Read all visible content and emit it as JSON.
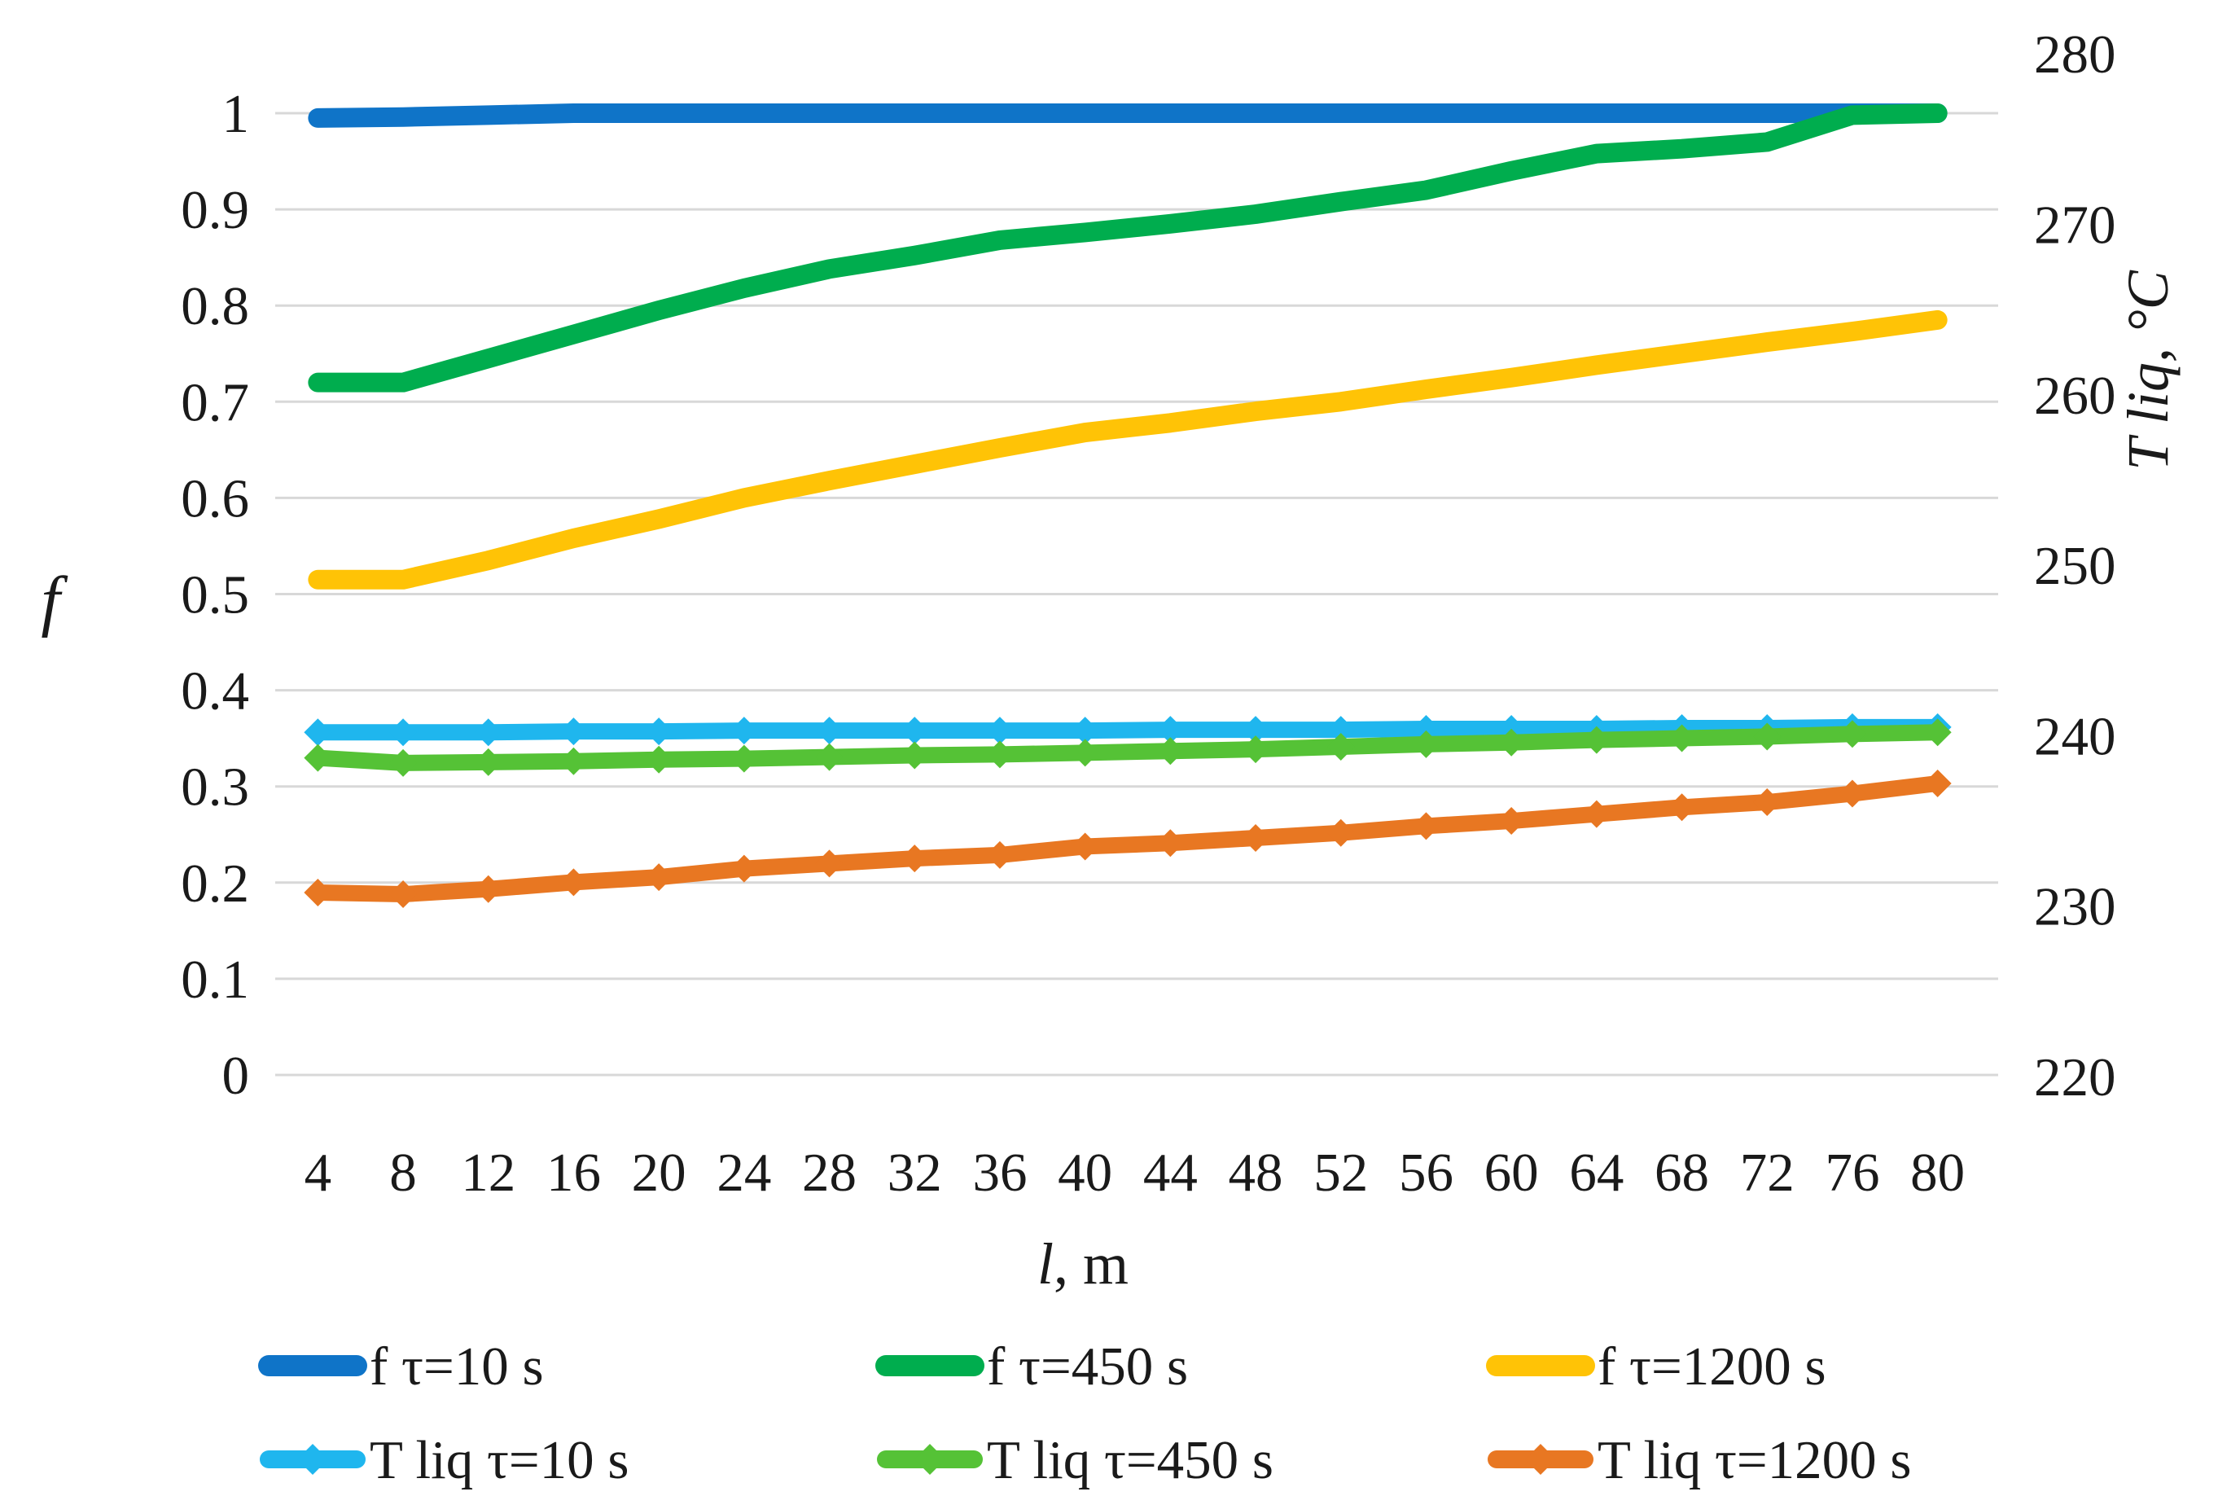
{
  "figure": {
    "background": "#FFFFFF",
    "grid_color": "#D8D8D8",
    "text_color": "#1A1A1A"
  },
  "chart_data": {
    "type": "line",
    "title": "",
    "xlabel": "l, m",
    "ylabel_left": "f",
    "ylabel_right": "T liq, °C",
    "x": [
      4,
      8,
      12,
      16,
      20,
      24,
      28,
      32,
      36,
      40,
      44,
      48,
      52,
      56,
      60,
      64,
      68,
      72,
      76,
      80
    ],
    "left_axis": {
      "min": 0,
      "max": 1,
      "tick_values": [
        1,
        0.9,
        0.8,
        0.7,
        0.6,
        0.5,
        0.4,
        0.3,
        0.2,
        0.1,
        0
      ],
      "tick_labels": [
        "1",
        "0.9",
        "0.8",
        "0.7",
        "0.6",
        "0.5",
        "0.4",
        "0.3",
        "0.2",
        "0.1",
        "0"
      ]
    },
    "right_axis": {
      "min": 220,
      "max": 283,
      "tick_values": [
        280,
        270,
        260,
        250,
        240,
        230,
        220
      ],
      "tick_labels": [
        "280",
        "270",
        "260",
        "250",
        "240",
        "230",
        "220"
      ]
    },
    "grid": "horizontal",
    "legend_position": "bottom",
    "series": [
      {
        "name": "f τ=10 s",
        "axis": "left",
        "color": "#0F74C8",
        "marker": false,
        "values": [
          0.995,
          0.996,
          0.998,
          1,
          1,
          1,
          1,
          1,
          1,
          1,
          1,
          1,
          1,
          1,
          1,
          1,
          1,
          1,
          1,
          1
        ]
      },
      {
        "name": "f τ=450 s",
        "axis": "left",
        "color": "#00AD4E",
        "marker": false,
        "values": [
          0.72,
          0.72,
          0.745,
          0.77,
          0.795,
          0.818,
          0.838,
          0.852,
          0.868,
          0.876,
          0.885,
          0.895,
          0.908,
          0.92,
          0.94,
          0.958,
          0.963,
          0.97,
          0.998,
          1
        ]
      },
      {
        "name": "f τ=1200 s",
        "axis": "left",
        "color": "#FFC306",
        "marker": false,
        "values": [
          0.515,
          0.515,
          0.535,
          0.558,
          0.578,
          0.6,
          0.618,
          0.635,
          0.652,
          0.668,
          0.678,
          0.69,
          0.7,
          0.713,
          0.725,
          0.738,
          0.75,
          0.762,
          0.773,
          0.785
        ]
      },
      {
        "name": "T liq τ=10 s",
        "axis": "right",
        "color": "#1FB6EE",
        "marker": true,
        "values": [
          240.2,
          240.2,
          240.2,
          240.25,
          240.25,
          240.3,
          240.3,
          240.3,
          240.3,
          240.3,
          240.35,
          240.35,
          240.35,
          240.4,
          240.4,
          240.4,
          240.45,
          240.45,
          240.5,
          240.5
        ]
      },
      {
        "name": "T liq τ=450 s",
        "axis": "right",
        "color": "#55C236",
        "marker": true,
        "values": [
          238.7,
          238.4,
          238.45,
          238.5,
          238.6,
          238.65,
          238.75,
          238.85,
          238.9,
          239,
          239.1,
          239.2,
          239.35,
          239.5,
          239.6,
          239.75,
          239.85,
          239.95,
          240.1,
          240.2
        ]
      },
      {
        "name": "T liq τ=1200 s",
        "axis": "right",
        "color": "#E87722",
        "marker": true,
        "values": [
          230.8,
          230.7,
          231,
          231.4,
          231.7,
          232.2,
          232.5,
          232.8,
          233,
          233.5,
          233.7,
          234,
          234.3,
          234.7,
          235,
          235.4,
          235.8,
          236.1,
          236.6,
          237.2
        ]
      }
    ]
  }
}
